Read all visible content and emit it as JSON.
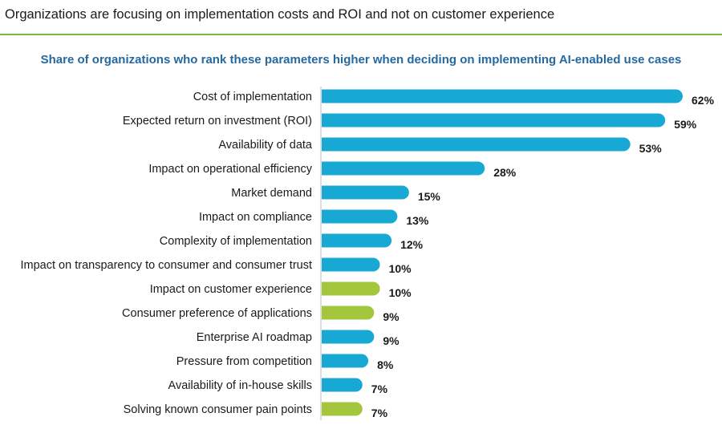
{
  "header": {
    "headline": "Organizations are focusing on implementation costs and ROI and not on customer experience"
  },
  "colors": {
    "accent_rule": "#7ab648",
    "title": "#2569a0",
    "bar_blue": "#17a8d4",
    "bar_green": "#a4c63d"
  },
  "chart_data": {
    "type": "bar",
    "orientation": "horizontal",
    "title": "Share of organizations who rank these parameters higher when deciding on implementing AI-enabled use cases",
    "xlabel": "",
    "ylabel": "",
    "xlim": [
      0,
      62
    ],
    "unit": "%",
    "categories": [
      "Cost of implementation",
      "Expected return on investment (ROI)",
      "Availability of data",
      "Impact on operational efficiency",
      "Market demand",
      "Impact on compliance",
      "Complexity of implementation",
      "Impact on transparency to consumer and consumer trust",
      "Impact on customer experience",
      "Consumer preference of applications",
      "Enterprise AI roadmap",
      "Pressure from competition",
      "Availability of in-house skills",
      "Solving known consumer pain points"
    ],
    "values": [
      62,
      59,
      53,
      28,
      15,
      13,
      12,
      10,
      10,
      9,
      9,
      8,
      7,
      7
    ],
    "labels": [
      "62%",
      "59%",
      "53%",
      "28%",
      "15%",
      "13%",
      "12%",
      "10%",
      "10%",
      "9%",
      "9%",
      "8%",
      "7%",
      "7%"
    ],
    "bar_colors": [
      "blue",
      "blue",
      "blue",
      "blue",
      "blue",
      "blue",
      "blue",
      "blue",
      "green",
      "green",
      "blue",
      "blue",
      "blue",
      "green"
    ]
  }
}
